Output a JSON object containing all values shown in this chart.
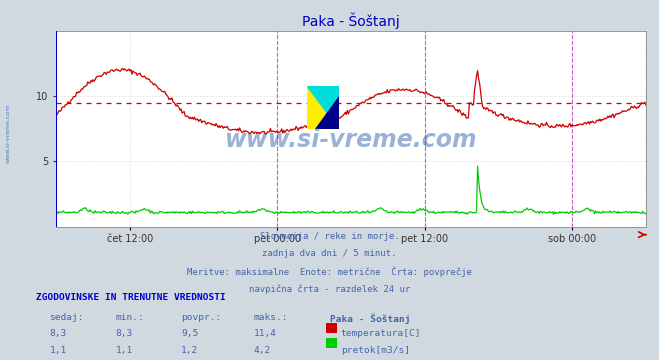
{
  "title": "Paka - Šoštanj",
  "title_color": "#0000cc",
  "bg_color": "#d0d8e0",
  "plot_bg_color": "#ffffff",
  "watermark_text": "www.si-vreme.com",
  "watermark_color": "#2255aa",
  "caption_lines": [
    "Slovenija / reke in morje.",
    "zadnja dva dni / 5 minut.",
    "Meritve: maksimalne  Enote: metrične  Črta: povprečje",
    "navpična črta - razdelek 24 ur"
  ],
  "caption_color": "#4466aa",
  "table_header": "ZGODOVINSKE IN TRENUTNE VREDNOSTI",
  "table_header_color": "#0000cc",
  "table_col_headers": [
    "sedaj:",
    "min.:",
    "povpr.:",
    "maks.:",
    "Paka - Šoštanj"
  ],
  "table_col_color": "#4466aa",
  "row1_values": [
    "8,3",
    "8,3",
    "9,5",
    "11,4"
  ],
  "row2_values": [
    "1,1",
    "1,1",
    "1,2",
    "4,2"
  ],
  "row1_label": "temperatura[C]",
  "row2_label": "pretok[m3/s]",
  "row1_color": "#cc0000",
  "row2_color": "#00cc00",
  "temp_color": "#cc0000",
  "flow_color": "#00cc00",
  "avg_temp": 9.5,
  "ylim": [
    0,
    15
  ],
  "yticks": [
    5,
    10
  ],
  "tick_label_color": "#333333",
  "axis_color": "#888888",
  "grid_color": "#cccccc",
  "vline_color": "#cc44cc",
  "num_points": 576,
  "x_tick_labels": [
    "čet 12:00",
    "pet 00:00",
    "pet 12:00",
    "sob 00:00"
  ],
  "x_tick_positions": [
    0.125,
    0.375,
    0.625,
    0.875
  ]
}
